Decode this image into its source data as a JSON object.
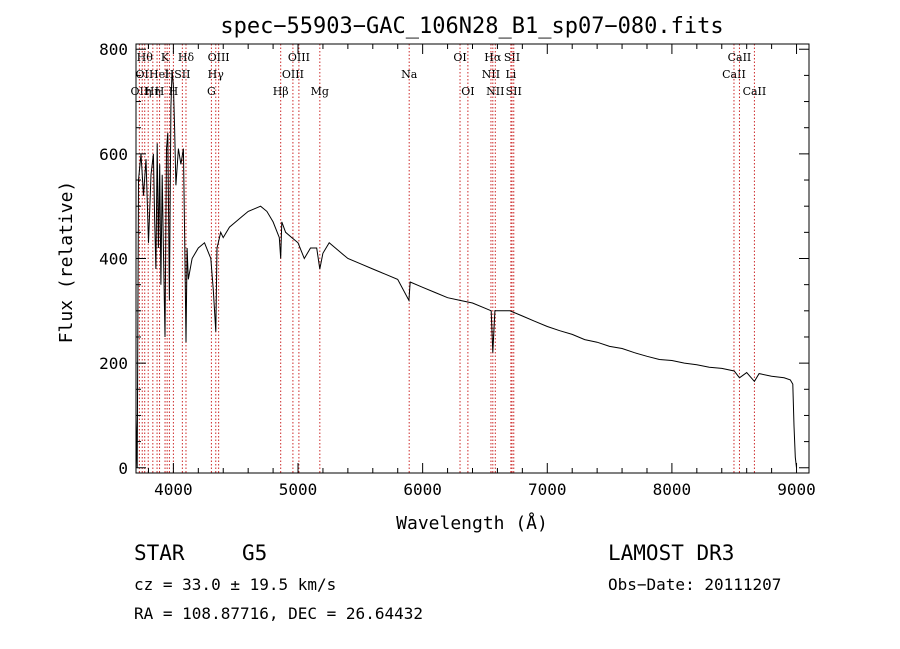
{
  "chart_data": {
    "type": "line",
    "title": "spec−55903−GAC_106N28_B1_sp07−080.fits",
    "xlabel": "Wavelength (Å)",
    "ylabel": "Flux (relative)",
    "xlim": [
      3700,
      9100
    ],
    "ylim": [
      -10,
      810
    ],
    "xticks": [
      4000,
      5000,
      6000,
      7000,
      8000,
      9000
    ],
    "yticks": [
      0,
      200,
      400,
      600,
      800
    ],
    "series": [
      {
        "name": "flux",
        "x": [
          3700,
          3710,
          3720,
          3740,
          3760,
          3780,
          3800,
          3820,
          3840,
          3850,
          3860,
          3870,
          3880,
          3890,
          3900,
          3910,
          3920,
          3933,
          3945,
          3955,
          3968,
          3980,
          3990,
          4000,
          4010,
          4020,
          4040,
          4060,
          4080,
          4090,
          4101,
          4110,
          4120,
          4150,
          4200,
          4250,
          4300,
          4320,
          4340,
          4350,
          4360,
          4380,
          4400,
          4450,
          4500,
          4550,
          4600,
          4650,
          4700,
          4750,
          4800,
          4850,
          4861,
          4870,
          4900,
          4950,
          5000,
          5050,
          5100,
          5150,
          5175,
          5200,
          5250,
          5300,
          5350,
          5400,
          5500,
          5600,
          5700,
          5800,
          5890,
          5900,
          6000,
          6100,
          6200,
          6300,
          6400,
          6500,
          6550,
          6563,
          6580,
          6700,
          6800,
          6900,
          7000,
          7100,
          7200,
          7300,
          7400,
          7500,
          7600,
          7700,
          7800,
          7900,
          8000,
          8100,
          8200,
          8300,
          8400,
          8500,
          8542,
          8600,
          8662,
          8700,
          8800,
          8900,
          8950,
          8970,
          8980,
          8990,
          9000
        ],
        "y": [
          100,
          0,
          550,
          600,
          520,
          590,
          430,
          560,
          600,
          470,
          380,
          620,
          420,
          580,
          350,
          560,
          420,
          250,
          610,
          640,
          320,
          690,
          760,
          730,
          650,
          540,
          610,
          580,
          610,
          450,
          240,
          420,
          360,
          400,
          420,
          430,
          400,
          340,
          260,
          420,
          430,
          450,
          440,
          460,
          470,
          480,
          490,
          495,
          500,
          490,
          470,
          440,
          400,
          470,
          450,
          440,
          430,
          400,
          420,
          420,
          380,
          410,
          430,
          420,
          410,
          400,
          390,
          380,
          370,
          360,
          320,
          355,
          345,
          335,
          325,
          320,
          315,
          305,
          300,
          220,
          300,
          300,
          290,
          280,
          270,
          262,
          255,
          245,
          240,
          232,
          228,
          220,
          213,
          207,
          205,
          200,
          197,
          192,
          190,
          185,
          172,
          182,
          165,
          180,
          175,
          172,
          168,
          160,
          80,
          20,
          0
        ]
      }
    ],
    "lines": [
      {
        "x": 3727,
        "text": "OII",
        "row": 2
      },
      {
        "x": 3750,
        "text": "OI",
        "row": 1
      },
      {
        "x": 3770,
        "text": "Hθ",
        "row": 0
      },
      {
        "x": 3798,
        "text": "η",
        "row": 2
      },
      {
        "x": 3835,
        "text": "Hη",
        "row": 2
      },
      {
        "x": 3869,
        "text": "He",
        "row": 1
      },
      {
        "x": 3889,
        "text": "H",
        "row": 2
      },
      {
        "x": 3933,
        "text": "K",
        "row": 0
      },
      {
        "x": 3950,
        "text": "l",
        "row": 1
      },
      {
        "x": 3968,
        "text": "H",
        "row": 1
      },
      {
        "x": 4000,
        "text": "H",
        "row": 2
      },
      {
        "x": 4072,
        "text": "SII",
        "row": 1
      },
      {
        "x": 4101,
        "text": "Hδ",
        "row": 0
      },
      {
        "x": 4305,
        "text": "G",
        "row": 2
      },
      {
        "x": 4340,
        "text": "Hγ",
        "row": 1
      },
      {
        "x": 4363,
        "text": "OIII",
        "row": 0
      },
      {
        "x": 4861,
        "text": "Hβ",
        "row": 2
      },
      {
        "x": 4959,
        "text": "OIII",
        "row": 1
      },
      {
        "x": 5007,
        "text": "OIII",
        "row": 0
      },
      {
        "x": 5175,
        "text": "Mg",
        "row": 2
      },
      {
        "x": 5892,
        "text": "Na",
        "row": 1
      },
      {
        "x": 6300,
        "text": "OI",
        "row": 0
      },
      {
        "x": 6363,
        "text": "OI",
        "row": 2
      },
      {
        "x": 6548,
        "text": "NII",
        "row": 1
      },
      {
        "x": 6563,
        "text": "Hα",
        "row": 0
      },
      {
        "x": 6583,
        "text": "NII",
        "row": 2
      },
      {
        "x": 6717,
        "text": "SII",
        "row": 0
      },
      {
        "x": 6731,
        "text": "SII",
        "row": 2
      },
      {
        "x": 6708,
        "text": "Li",
        "row": 1
      },
      {
        "x": 8498,
        "text": "CaII",
        "row": 1
      },
      {
        "x": 8542,
        "text": "CaII",
        "row": 0
      },
      {
        "x": 8662,
        "text": "CaII",
        "row": 2
      }
    ]
  },
  "info": {
    "object_class": "STAR",
    "subclass": "G5",
    "survey": "LAMOST DR3",
    "cz": "cz = 33.0 ± 19.5 km/s",
    "obs_date": "Obs−Date: 20111207",
    "coords": "RA = 108.87716, DEC =  26.64432"
  }
}
